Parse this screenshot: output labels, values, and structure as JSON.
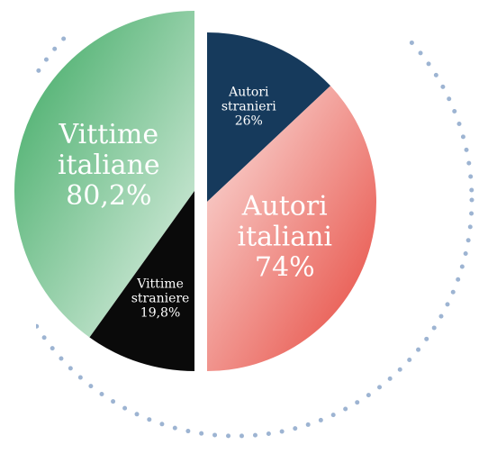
{
  "chart_data": [
    {
      "type": "pie",
      "half": "left",
      "categories": [
        "Vittime italiane",
        "Vittime straniere"
      ],
      "values": [
        80.2,
        19.8
      ],
      "value_labels": [
        "80,2%",
        "19,8%"
      ],
      "colors": [
        "#3fae66",
        "#0a0a0a"
      ]
    },
    {
      "type": "pie",
      "half": "right",
      "categories": [
        "Autori stranieri",
        "Autori italiani"
      ],
      "values": [
        26,
        74
      ],
      "value_labels": [
        "26%",
        "74%"
      ],
      "colors": [
        "#163a5c",
        "#e6443a"
      ]
    }
  ]
}
